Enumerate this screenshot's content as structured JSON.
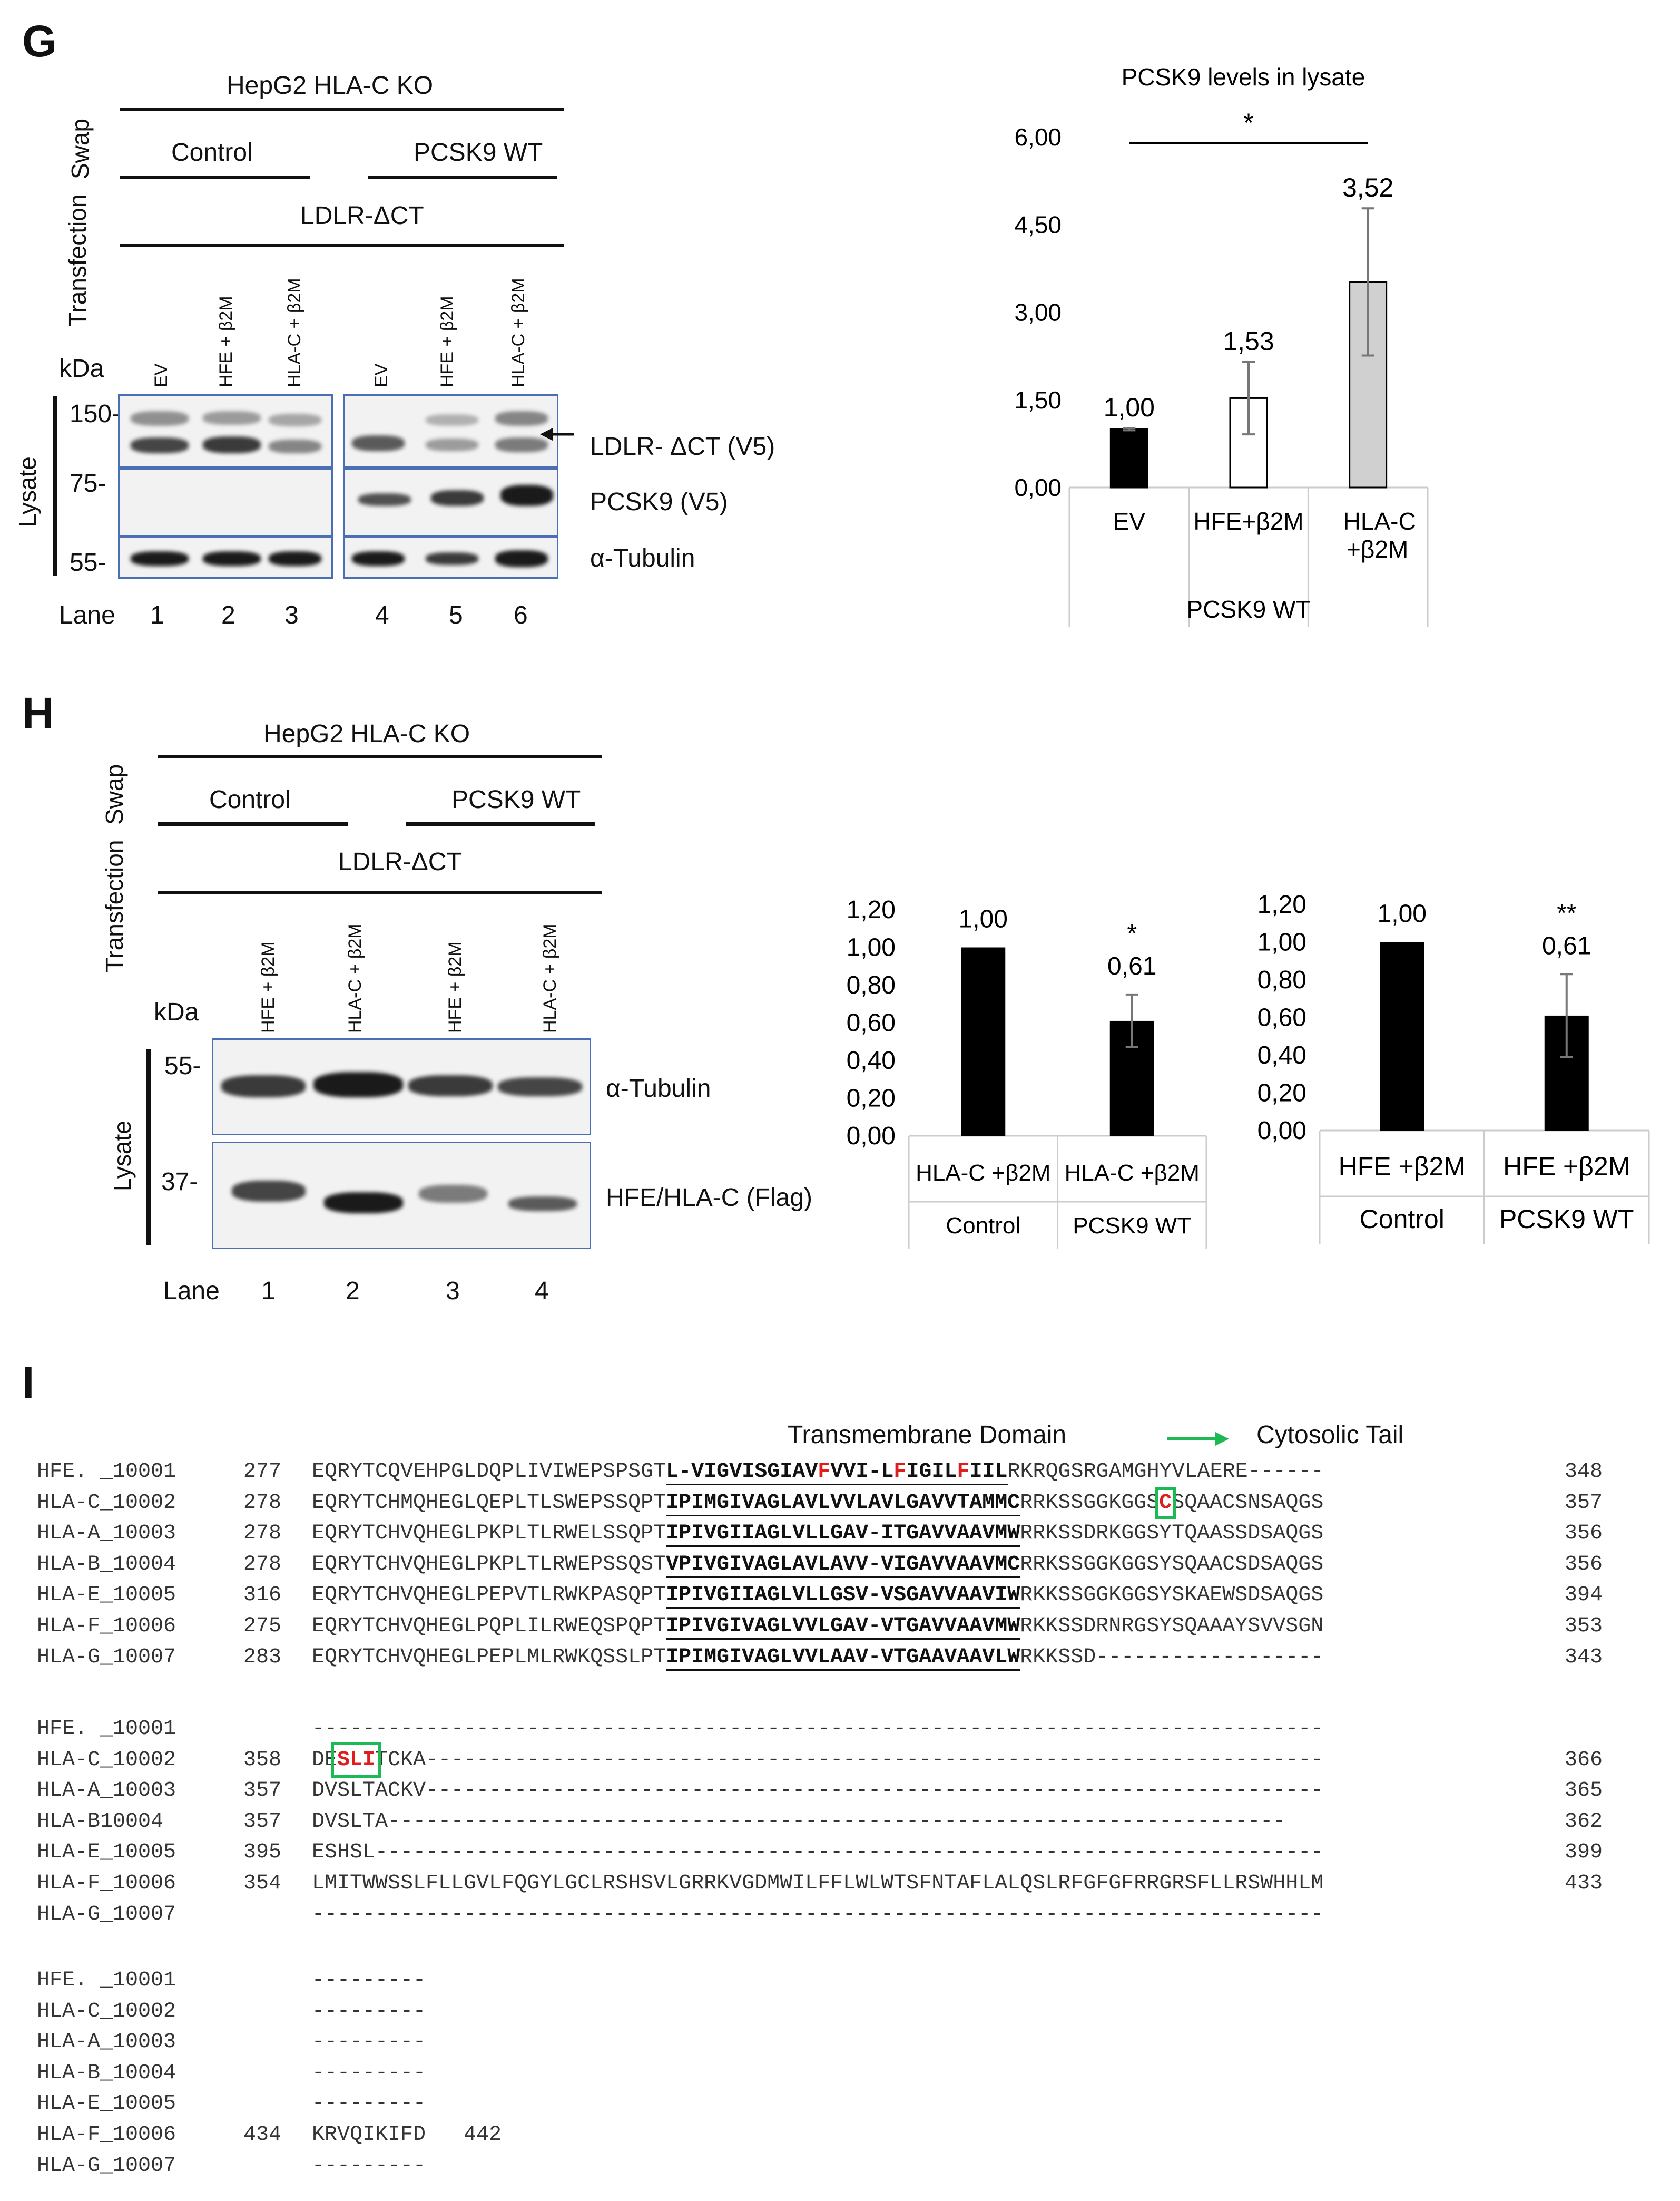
{
  "panel_g": {
    "letter": "G",
    "cell_line": "HepG2 HLA-C KO",
    "swap_label": "Swap",
    "transfection_label": "Transfection",
    "control_label": "Control",
    "pcsk9_label": "PCSK9 WT",
    "construct": "LDLR-ΔCT",
    "kda": "kDa",
    "lanes_hdr": [
      "EV",
      "HFE + β2M",
      "HLA-C + β2M",
      "EV",
      "HFE + β2M",
      "HLA-C + β2M"
    ],
    "markers": [
      "150-",
      "75-",
      "55-"
    ],
    "lysate": "Lysate",
    "band_labels": [
      "LDLR- ΔCT (V5)",
      "PCSK9 (V5)",
      "α-Tubulin"
    ],
    "lane_word": "Lane",
    "lane_nums": [
      "1",
      "2",
      "3",
      "4",
      "5",
      "6"
    ]
  },
  "panel_h": {
    "letter": "H",
    "cell_line": "HepG2 HLA-C KO",
    "swap_label": "Swap",
    "transfection_label": "Transfection",
    "control_label": "Control",
    "pcsk9_label": "PCSK9 WT",
    "construct": "LDLR-ΔCT",
    "kda": "kDa",
    "lanes_hdr": [
      "HFE + β2M",
      "HLA-C + β2M",
      "HFE + β2M",
      "HLA-C + β2M"
    ],
    "markers": [
      "55-",
      "37-"
    ],
    "lysate": "Lysate",
    "band_labels": [
      "α-Tubulin",
      "HFE/HLA-C (Flag)"
    ],
    "lane_word": "Lane",
    "lane_nums": [
      "1",
      "2",
      "3",
      "4"
    ]
  },
  "panel_i": {
    "letter": "I",
    "tm_label": "Transmembrane Domain",
    "cyto_label": "Cytosolic Tail",
    "block1": [
      {
        "name": "HFE. _10001",
        "start": "277",
        "pre": "EQRYTCQVEHPGLDQPLIVIWEPSPSGT",
        "tm": "L-VIGVISGIAVFVVI-LFIGILFIIL",
        "post": "RKRQGSRGAMGHYVLAERE------",
        "end": "348"
      },
      {
        "name": "HLA-C_10002",
        "start": "278",
        "pre": "EQRYTCHMQHEGLQEPLTLSWEPSSQPT",
        "tm": "IPIMGIVAGLAVLVVLAVLGAVVTAMMC",
        "post": "RRKSSGGKGGSCSQAACSNSAQGS",
        "end": "357"
      },
      {
        "name": "HLA-A_10003",
        "start": "278",
        "pre": "EQRYTCHVQHEGLPKPLTLRWELSSQPT",
        "tm": "IPIVGIIAGLVLLGAV-ITGAVVAAVMW",
        "post": "RRKSSDRKGGSYTQAASSDSAQGS",
        "end": "356"
      },
      {
        "name": "HLA-B_10004",
        "start": "278",
        "pre": "EQRYTCHVQHEGLPKPLTLRWEPSSQST",
        "tm": "VPIVGIVAGLAVLAVV-VIGAVVAAVMC",
        "post": "RRKSSGGKGGSYSQAACSDSAQGS",
        "end": "356"
      },
      {
        "name": "HLA-E_10005",
        "start": "316",
        "pre": "EQRYTCHVQHEGLPEPVTLRWKPASQPT",
        "tm": "IPIVGIIAGLVLLGSV-VSGAVVAAVIW",
        "post": "RKKSSGGKGGSYSKAEWSDSAQGS",
        "end": "394"
      },
      {
        "name": "HLA-F_10006",
        "start": "275",
        "pre": "EQRYTCHVQHEGLPQPLILRWEQSPQPT",
        "tm": "IPIVGIVAGLVVLGAV-VTGAVVAAVMW",
        "post": "RKKSSDRNRGSYSQAAAYSVVSGN",
        "end": "353"
      },
      {
        "name": "HLA-G_10007",
        "start": "283",
        "pre": "EQRYTCHVQHEGLPEPLMLRWKQSSLPT",
        "tm": "IPIMGIVAGLVVLAAV-VTGAAVAAVLW",
        "post": "RKKSSD------------------",
        "end": "343"
      }
    ],
    "block2": [
      {
        "name": "HFE. _10001",
        "start": "",
        "seq": "--------------------------------------------------------------------------------",
        "end": ""
      },
      {
        "name": "HLA-C_10002",
        "start": "358",
        "seq": "DESLITCKA-----------------------------------------------------------------------",
        "end": "366"
      },
      {
        "name": "HLA-A_10003",
        "start": "357",
        "seq": "DVSLTACKV-----------------------------------------------------------------------",
        "end": "365"
      },
      {
        "name": "HLA-B10004",
        "start": "357",
        "seq": "DVSLTA-----------------------------------------------------------------------",
        "end": "362"
      },
      {
        "name": "HLA-E_10005",
        "start": "395",
        "seq": "ESHSL---------------------------------------------------------------------------",
        "end": "399"
      },
      {
        "name": "HLA-F_10006",
        "start": "354",
        "seq": "LMITWWSSLFLLGVLFQGYLGCLRSHSVLGRRKVGDMWILFFLWLWTSFNTAFLALQSLRFGFGFRRGRSFLLRSWHHLM",
        "end": "433"
      },
      {
        "name": "HLA-G_10007",
        "start": "",
        "seq": "--------------------------------------------------------------------------------",
        "end": ""
      }
    ],
    "block3": [
      {
        "name": "HFE. _10001",
        "start": "",
        "seq": "---------",
        "end": ""
      },
      {
        "name": "HLA-C_10002",
        "start": "",
        "seq": "---------",
        "end": ""
      },
      {
        "name": "HLA-A_10003",
        "start": "",
        "seq": "---------",
        "end": ""
      },
      {
        "name": "HLA-B_10004",
        "start": "",
        "seq": "---------",
        "end": ""
      },
      {
        "name": "HLA-E_10005",
        "start": "",
        "seq": "---------",
        "end": ""
      },
      {
        "name": "HLA-F_10006",
        "start": "434",
        "seq": "KRVQIKIFD",
        "end": "442"
      },
      {
        "name": "HLA-G_10007",
        "start": "",
        "seq": "---------",
        "end": ""
      }
    ]
  },
  "colors": {
    "black_bar": "#000000",
    "white_bar": "#ffffff",
    "gray_bar": "#d0d0d0",
    "blot_border": "#4a6fb5",
    "highlight": "#e01c1c",
    "box": "#1db954",
    "arrow": "#1db954"
  },
  "chart_data": [
    {
      "type": "bar",
      "title": "PCSK9 levels in lysate",
      "categories": [
        "EV",
        "HFE+β2M",
        "HLA-C +β2M"
      ],
      "group_label": "PCSK9 WT",
      "values": [
        1.0,
        1.53,
        3.52
      ],
      "value_labels": [
        "1,00",
        "1,53",
        "3,52"
      ],
      "errors": [
        0.02,
        0.62,
        1.26
      ],
      "bar_colors": [
        "#000000",
        "#ffffff",
        "#d0d0d0"
      ],
      "yticks": [
        "0,00",
        "1,50",
        "3,00",
        "4,50",
        "6,00"
      ],
      "ylim": [
        0,
        6
      ],
      "significance": "*"
    },
    {
      "type": "bar",
      "categories": [
        "HLA-C +β2M",
        "HLA-C +β2M"
      ],
      "groups": [
        "Control",
        "PCSK9 WT"
      ],
      "values": [
        1.0,
        0.61
      ],
      "value_labels": [
        "1,00",
        "0,61"
      ],
      "errors": [
        0.0,
        0.14
      ],
      "significance": [
        "",
        "*"
      ],
      "yticks": [
        "0,00",
        "0,20",
        "0,40",
        "0,60",
        "0,80",
        "1,00",
        "1,20"
      ],
      "ylim": [
        0,
        1.2
      ]
    },
    {
      "type": "bar",
      "categories": [
        "HFE +β2M",
        "HFE +β2M"
      ],
      "groups": [
        "Control",
        "PCSK9 WT"
      ],
      "values": [
        1.0,
        0.61
      ],
      "value_labels": [
        "1,00",
        "0,61"
      ],
      "errors": [
        0.0,
        0.22
      ],
      "significance": [
        "",
        "**"
      ],
      "yticks": [
        "0,00",
        "0,20",
        "0,40",
        "0,60",
        "0,80",
        "1,00",
        "1,20"
      ],
      "ylim": [
        0,
        1.2
      ]
    }
  ]
}
